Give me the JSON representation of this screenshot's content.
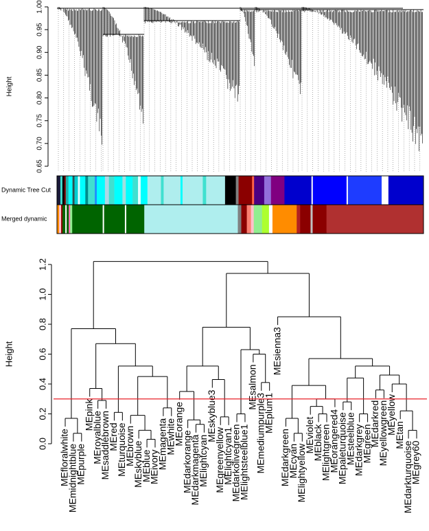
{
  "chart_data": [
    {
      "type": "gene_dendrogram",
      "ylabel": "Height",
      "ylim": [
        0.65,
        1.0
      ],
      "yticks": [
        0.65,
        {
          "value": 0.7,
          "label": "0.70"
        },
        0.75,
        {
          "value": 0.8,
          "label": "0.80"
        },
        0.85,
        {
          "value": 0.9,
          "label": "0.90"
        },
        0.95,
        {
          "value": 1.0,
          "label": "1.00"
        }
      ],
      "color_rows": [
        {
          "name": "Dynamic Tree Cut",
          "segments": [
            {
              "color": "#1a1a3a",
              "size": 5
            },
            {
              "color": "#40e0d0",
              "size": 3
            },
            {
              "color": "#000000",
              "size": 3
            },
            {
              "color": "#8b0000",
              "size": 2
            },
            {
              "color": "#20b2aa",
              "size": 4
            },
            {
              "color": "#00ffff",
              "size": 6
            },
            {
              "color": "#2f4f4f",
              "size": 3
            },
            {
              "color": "#00ced1",
              "size": 5
            },
            {
              "color": "#e0ffff",
              "size": 3
            },
            {
              "color": "#00ffff",
              "size": 8
            },
            {
              "color": "#008b8b",
              "size": 4
            },
            {
              "color": "#40e0d0",
              "size": 10
            },
            {
              "color": "#1e90ff",
              "size": 3
            },
            {
              "color": "#00ffff",
              "size": 12
            },
            {
              "color": "#add8e6",
              "size": 6
            },
            {
              "color": "#40e0d0",
              "size": 8
            },
            {
              "color": "#00ffff",
              "size": 12
            },
            {
              "color": "#a0e0e0",
              "size": 5
            },
            {
              "color": "#00ffff",
              "size": 10
            },
            {
              "color": "#40e0d0",
              "size": 8
            },
            {
              "color": "#e0ffff",
              "size": 4
            },
            {
              "color": "#00ffff",
              "size": 10
            },
            {
              "color": "#afeeee",
              "size": 20
            },
            {
              "color": "#40e0d0",
              "size": 4
            },
            {
              "color": "#afeeee",
              "size": 25
            },
            {
              "color": "#00ffff",
              "size": 3
            },
            {
              "color": "#afeeee",
              "size": 30
            },
            {
              "color": "#40e0d0",
              "size": 5
            },
            {
              "color": "#afeeee",
              "size": 28
            },
            {
              "color": "#000000",
              "size": 16
            },
            {
              "color": "#808080",
              "size": 4
            },
            {
              "color": "#8b0000",
              "size": 20
            },
            {
              "color": "#ff6347",
              "size": 3
            },
            {
              "color": "#4b0082",
              "size": 15
            },
            {
              "color": "#9370db",
              "size": 10
            },
            {
              "color": "#800080",
              "size": 20
            },
            {
              "color": "#0000cd",
              "size": 40
            },
            {
              "color": "#ffffff",
              "size": 2
            },
            {
              "color": "#0000ff",
              "size": 50
            },
            {
              "color": "#ffffff",
              "size": 2
            },
            {
              "color": "#1e3cff",
              "size": 50
            },
            {
              "color": "#ffffff",
              "size": 10
            },
            {
              "color": "#0000cd",
              "size": 52
            }
          ]
        },
        {
          "name": "Merged dynamic",
          "segments": [
            {
              "color": "#ff8c00",
              "size": 3
            },
            {
              "color": "#ffc0cb",
              "size": 3
            },
            {
              "color": "#8b0000",
              "size": 2
            },
            {
              "color": "#006400",
              "size": 4
            },
            {
              "color": "#ffffff",
              "size": 2
            },
            {
              "color": "#006400",
              "size": 3
            },
            {
              "color": "#ff69b4",
              "size": 2
            },
            {
              "color": "#90ee90",
              "size": 3
            },
            {
              "color": "#006400",
              "size": 44
            },
            {
              "color": "#ffffff",
              "size": 2
            },
            {
              "color": "#006400",
              "size": 30
            },
            {
              "color": "#ffffff",
              "size": 2
            },
            {
              "color": "#006400",
              "size": 26
            },
            {
              "color": "#afeeee",
              "size": 135
            },
            {
              "color": "#808080",
              "size": 5
            },
            {
              "color": "#8b0000",
              "size": 8
            },
            {
              "color": "#fa8072",
              "size": 6
            },
            {
              "color": "#ffc0cb",
              "size": 4
            },
            {
              "color": "#90ee90",
              "size": 12
            },
            {
              "color": "#adff2f",
              "size": 10
            },
            {
              "color": "#ffffff",
              "size": 5
            },
            {
              "color": "#ff8c00",
              "size": 35
            },
            {
              "color": "#b22222",
              "size": 5
            },
            {
              "color": "#8b0000",
              "size": 15
            },
            {
              "color": "#c0c0c0",
              "size": 3
            },
            {
              "color": "#8b0000",
              "size": 20
            },
            {
              "color": "#b03030",
              "size": 140
            }
          ]
        }
      ]
    },
    {
      "type": "dendrogram",
      "ylabel": "Height",
      "ylim": [
        0,
        1.3
      ],
      "yticks": [
        {
          "value": 0,
          "label": "0.0"
        },
        0.2,
        0.4,
        0.6,
        0.8,
        {
          "value": 1,
          "label": "1.0"
        },
        1.2
      ],
      "cut_height": 0.3,
      "cut_color": "#e8202a",
      "tree": {
        "height": 1.22,
        "children": [
          {
            "height": 0.77,
            "children": [
              {
                "height": 0.17,
                "children": [
                  {
                    "label": "MEfloralwhite"
                  },
                  {
                    "height": 0.07,
                    "children": [
                      {
                        "label": "MEmidnightblue"
                      },
                      {
                        "label": "MEpurple"
                      }
                    ]
                  }
                ]
              },
              {
                "height": 0.67,
                "children": [
                  {
                    "height": 0.37,
                    "children": [
                      {
                        "label": "MEpink"
                      },
                      {
                        "height": 0.29,
                        "children": [
                          {
                            "label": "MEroyalblue"
                          },
                          {
                            "label": "MEsaddlebrown"
                          }
                        ]
                      }
                    ]
                  },
                  {
                    "height": 0.52,
                    "children": [
                      {
                        "height": 0.21,
                        "children": [
                          {
                            "label": "MEred"
                          },
                          {
                            "label": "MEturquoise"
                          }
                        ]
                      },
                      {
                        "height": 0.45,
                        "children": [
                          {
                            "height": 0.19,
                            "children": [
                              {
                                "label": "MEbrown"
                              },
                              {
                                "height": 0.09,
                                "children": [
                                  {
                                    "label": "MEskyblue"
                                  },
                                  {
                                    "height": 0.03,
                                    "children": [
                                      {
                                        "label": "MEblue"
                                      },
                                      {
                                        "label": "MEivory"
                                      }
                                    ]
                                  }
                                ]
                              }
                            ]
                          },
                          {
                            "height": 0.24,
                            "children": [
                              {
                                "label": "MEmagenta"
                              },
                              {
                                "label": "MEwhite"
                              }
                            ]
                          }
                        ]
                      }
                    ]
                  }
                ]
              }
            ]
          },
          {
            "height": 1.14,
            "children": [
              {
                "height": 0.78,
                "children": [
                  {
                    "height": 0.52,
                    "children": [
                      {
                        "height": 0.35,
                        "children": [
                          {
                            "label": "MEorange"
                          },
                          {
                            "height": 0.16,
                            "children": [
                              {
                                "label": "MEdarkorange"
                              },
                              {
                                "height": 0.13,
                                "children": [
                                  {
                                    "label": "MEdarkmagenta"
                                  },
                                  {
                                    "label": "MElightcyan"
                                  }
                                ]
                              }
                            ]
                          }
                        ]
                      },
                      {
                        "height": 0.43,
                        "children": [
                          {
                            "label": "MEskyblue3"
                          },
                          {
                            "height": 0.18,
                            "children": [
                              {
                                "label": "MEgreenyellow"
                              },
                              {
                                "label": "MElightcyan1"
                              }
                            ]
                          }
                        ]
                      }
                    ]
                  },
                  {
                    "height": 0.63,
                    "children": [
                      {
                        "height": 0.2,
                        "children": [
                          {
                            "label": "MEdarkolivegreen"
                          },
                          {
                            "label": "MElightsteelblue1"
                          }
                        ]
                      },
                      {
                        "height": 0.6,
                        "children": [
                          {
                            "label": "MEsalmon"
                          },
                          {
                            "height": 0.41,
                            "children": [
                              {
                                "label": "MEmediumpurple3"
                              },
                              {
                                "label": "MEplum1"
                              }
                            ]
                          }
                        ]
                      }
                    ]
                  }
                ]
              },
              {
                "height": 0.85,
                "children": [
                  {
                    "label": "MEsienna3"
                  },
                  {
                    "height": 0.57,
                    "children": [
                      {
                        "height": 0.39,
                        "children": [
                          {
                            "height": 0.17,
                            "children": [
                              {
                                "label": "MEdarkgreen"
                              },
                              {
                                "height": 0.07,
                                "children": [
                                  {
                                    "label": "MEcyan"
                                  },
                                  {
                                    "label": "MElightyellow"
                                  }
                                ]
                              }
                            ]
                          },
                          {
                            "height": 0.3,
                            "children": [
                              {
                                "height": 0.25,
                                "children": [
                                  {
                                    "label": "MEviolet"
                                  },
                                  {
                                    "height": 0.2,
                                    "children": [
                                      {
                                        "label": "MEblack"
                                      },
                                      {
                                        "label": "MElightgreen"
                                      }
                                    ]
                                  }
                                ]
                              },
                              {
                                "label": "MEorangered4"
                              }
                            ]
                          }
                        ]
                      },
                      {
                        "height": 0.52,
                        "children": [
                          {
                            "height": 0.44,
                            "children": [
                              {
                                "height": 0.28,
                                "children": [
                                  {
                                    "label": "MEpaleturquoise"
                                  },
                                  {
                                    "label": "MEsteelblue"
                                  }
                                ]
                              },
                              {
                                "height": 0.2,
                                "children": [
                                  {
                                    "label": "MEdarkgrey"
                                  },
                                  {
                                    "label": "MEgreen"
                                  }
                                ]
                              }
                            ]
                          },
                          {
                            "height": 0.46,
                            "children": [
                              {
                                "height": 0.36,
                                "children": [
                                  {
                                    "label": "MEdarkred"
                                  },
                                  {
                                    "label": "MEyellowgreen"
                                  }
                                ]
                              },
                              {
                                "height": 0.4,
                                "children": [
                                  {
                                    "label": "MEyellow"
                                  },
                                  {
                                    "height": 0.22,
                                    "children": [
                                      {
                                        "label": "MEtan"
                                      },
                                      {
                                        "height": 0.09,
                                        "children": [
                                          {
                                            "label": "MEdarkturquoise"
                                          },
                                          {
                                            "label": "MEgrey60"
                                          }
                                        ]
                                      }
                                    ]
                                  }
                                ]
                              }
                            ]
                          }
                        ]
                      }
                    ]
                  }
                ]
              }
            ]
          }
        ]
      }
    }
  ]
}
